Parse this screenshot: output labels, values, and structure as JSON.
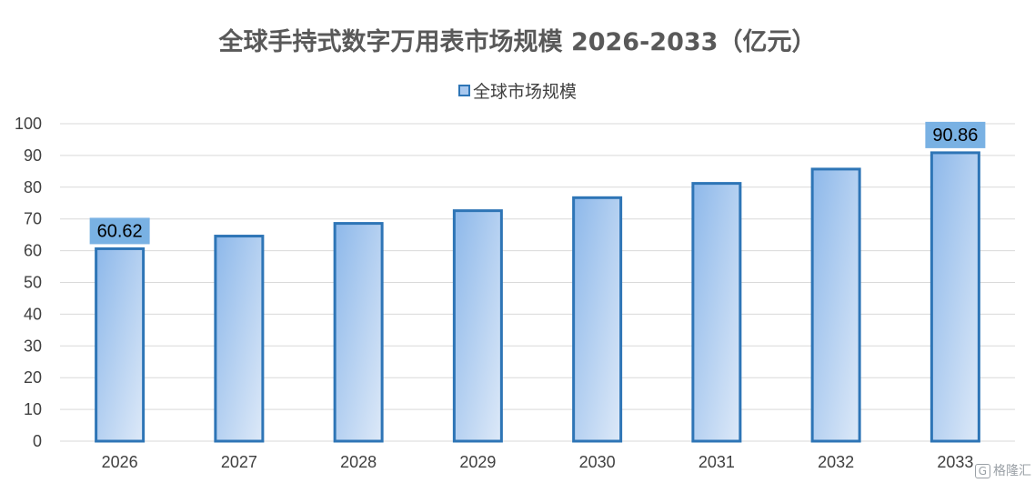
{
  "chart_data": {
    "type": "bar",
    "title": "全球手持式数字万用表市场规模 2026-2033（亿元）",
    "categories": [
      "2026",
      "2027",
      "2028",
      "2029",
      "2030",
      "2031",
      "2032",
      "2033"
    ],
    "series": [
      {
        "name": "全球市场规模",
        "values": [
          60.62,
          64.6,
          68.6,
          72.6,
          76.7,
          81.2,
          85.7,
          90.86
        ]
      }
    ],
    "data_labels": [
      {
        "category": "2026",
        "text": "60.62"
      },
      {
        "category": "2033",
        "text": "90.86"
      }
    ],
    "ylim": [
      0,
      100
    ],
    "yticks": [
      0,
      10,
      20,
      30,
      40,
      50,
      60,
      70,
      80,
      90,
      100
    ],
    "xlabel": "",
    "ylabel": "",
    "grid": true,
    "legend_position": "top",
    "colors": {
      "bar_border": "#2e75b6",
      "bar_fill_top": "#8db8ea",
      "bar_fill_bottom": "#dde9f8",
      "label_box": "#79b1e3",
      "grid": "#d9d9d9"
    }
  },
  "watermark": {
    "icon": "gelonghui-logo-icon",
    "text": "格隆汇"
  }
}
